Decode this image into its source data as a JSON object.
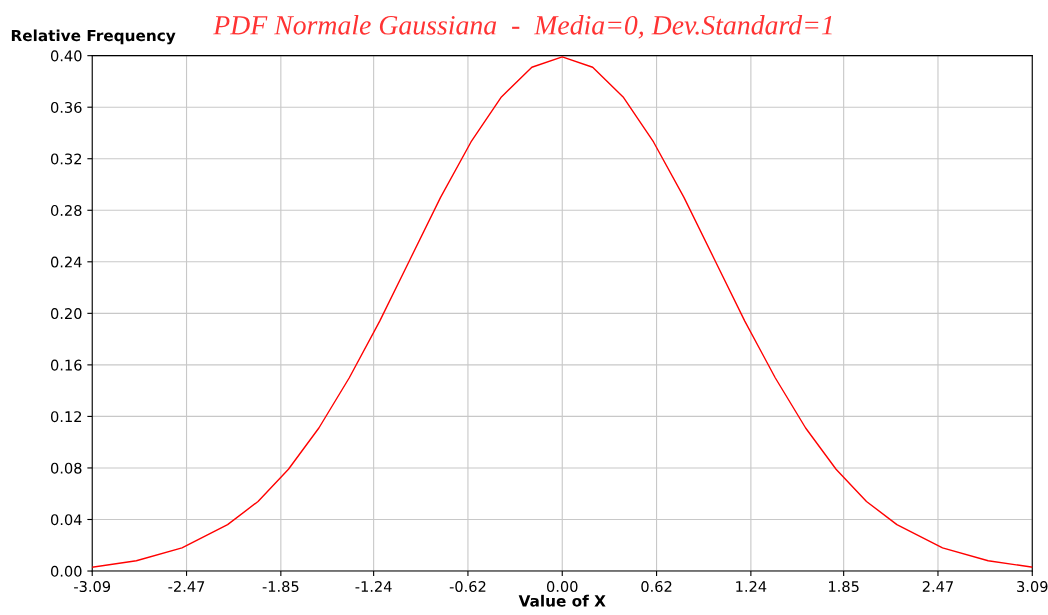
{
  "chart_data": {
    "type": "line",
    "title": "PDF Normale Gaussiana  -  Media=0, Dev.Standard=1",
    "xlabel": "Value of X",
    "ylabel": "Relative Frequency",
    "x": [
      -3.09,
      -2.8,
      -2.5,
      -2.2,
      -2.0,
      -1.8,
      -1.6,
      -1.4,
      -1.2,
      -1.0,
      -0.8,
      -0.6,
      -0.4,
      -0.2,
      0.0,
      0.2,
      0.4,
      0.6,
      0.8,
      1.0,
      1.2,
      1.4,
      1.6,
      1.8,
      2.0,
      2.2,
      2.5,
      2.8,
      3.09
    ],
    "series": [
      {
        "color": "#ff0000",
        "values": [
          0.003,
          0.008,
          0.018,
          0.036,
          0.054,
          0.079,
          0.111,
          0.15,
          0.194,
          0.242,
          0.29,
          0.333,
          0.368,
          0.391,
          0.399,
          0.391,
          0.368,
          0.333,
          0.29,
          0.242,
          0.194,
          0.15,
          0.111,
          0.079,
          0.054,
          0.036,
          0.018,
          0.008,
          0.003
        ]
      }
    ],
    "xlim": [
      -3.09,
      3.09
    ],
    "ylim": [
      0,
      0.4
    ],
    "xticks": [
      -3.09,
      -2.47,
      -1.85,
      -1.24,
      -0.62,
      {
        "value": 0,
        "label": "0.00"
      },
      0.62,
      1.24,
      1.85,
      2.47,
      3.09
    ],
    "yticks": [
      {
        "value": 0,
        "label": "0.00"
      },
      0.04,
      0.08,
      0.12,
      0.16,
      {
        "value": 0.2,
        "label": "0.20"
      },
      0.24,
      0.28,
      0.32,
      0.36,
      {
        "value": 0.4,
        "label": "0.40"
      }
    ],
    "grid": true,
    "marker": "none",
    "line_style": "solid"
  }
}
